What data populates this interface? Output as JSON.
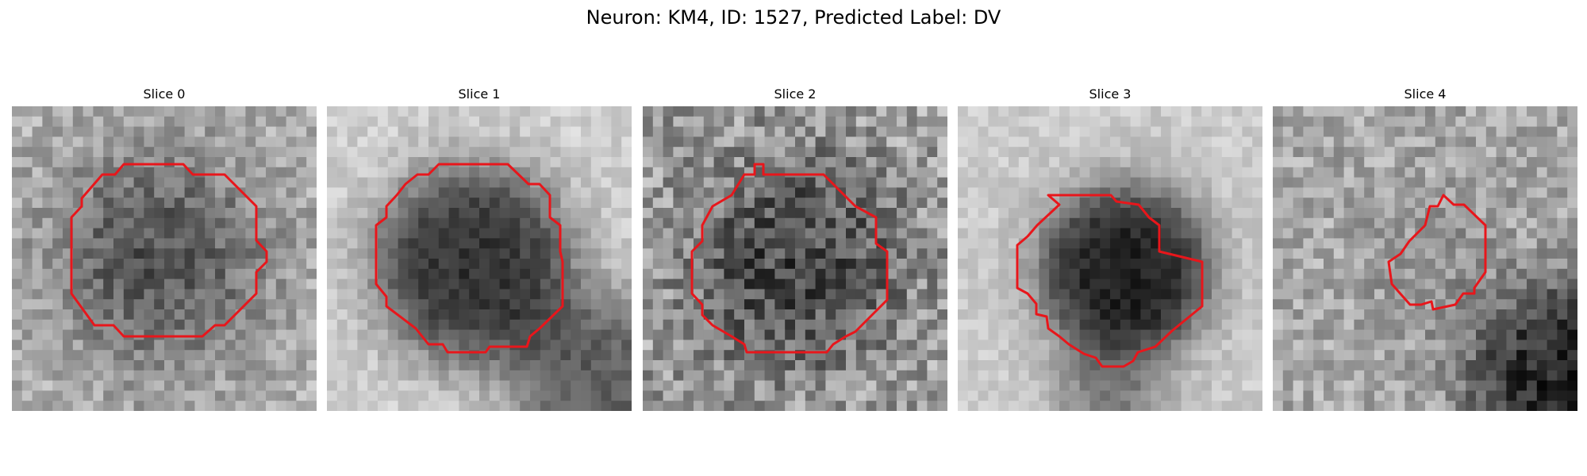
{
  "figure": {
    "title": "Neuron: KM4, ID: 1527, Predicted Label: DV"
  },
  "panels": [
    {
      "title": "Slice 0"
    },
    {
      "title": "Slice 1"
    },
    {
      "title": "Slice 2"
    },
    {
      "title": "Slice 3"
    },
    {
      "title": "Slice 4"
    }
  ],
  "colors": {
    "contour": "#e8161b",
    "background": "#ffffff"
  }
}
